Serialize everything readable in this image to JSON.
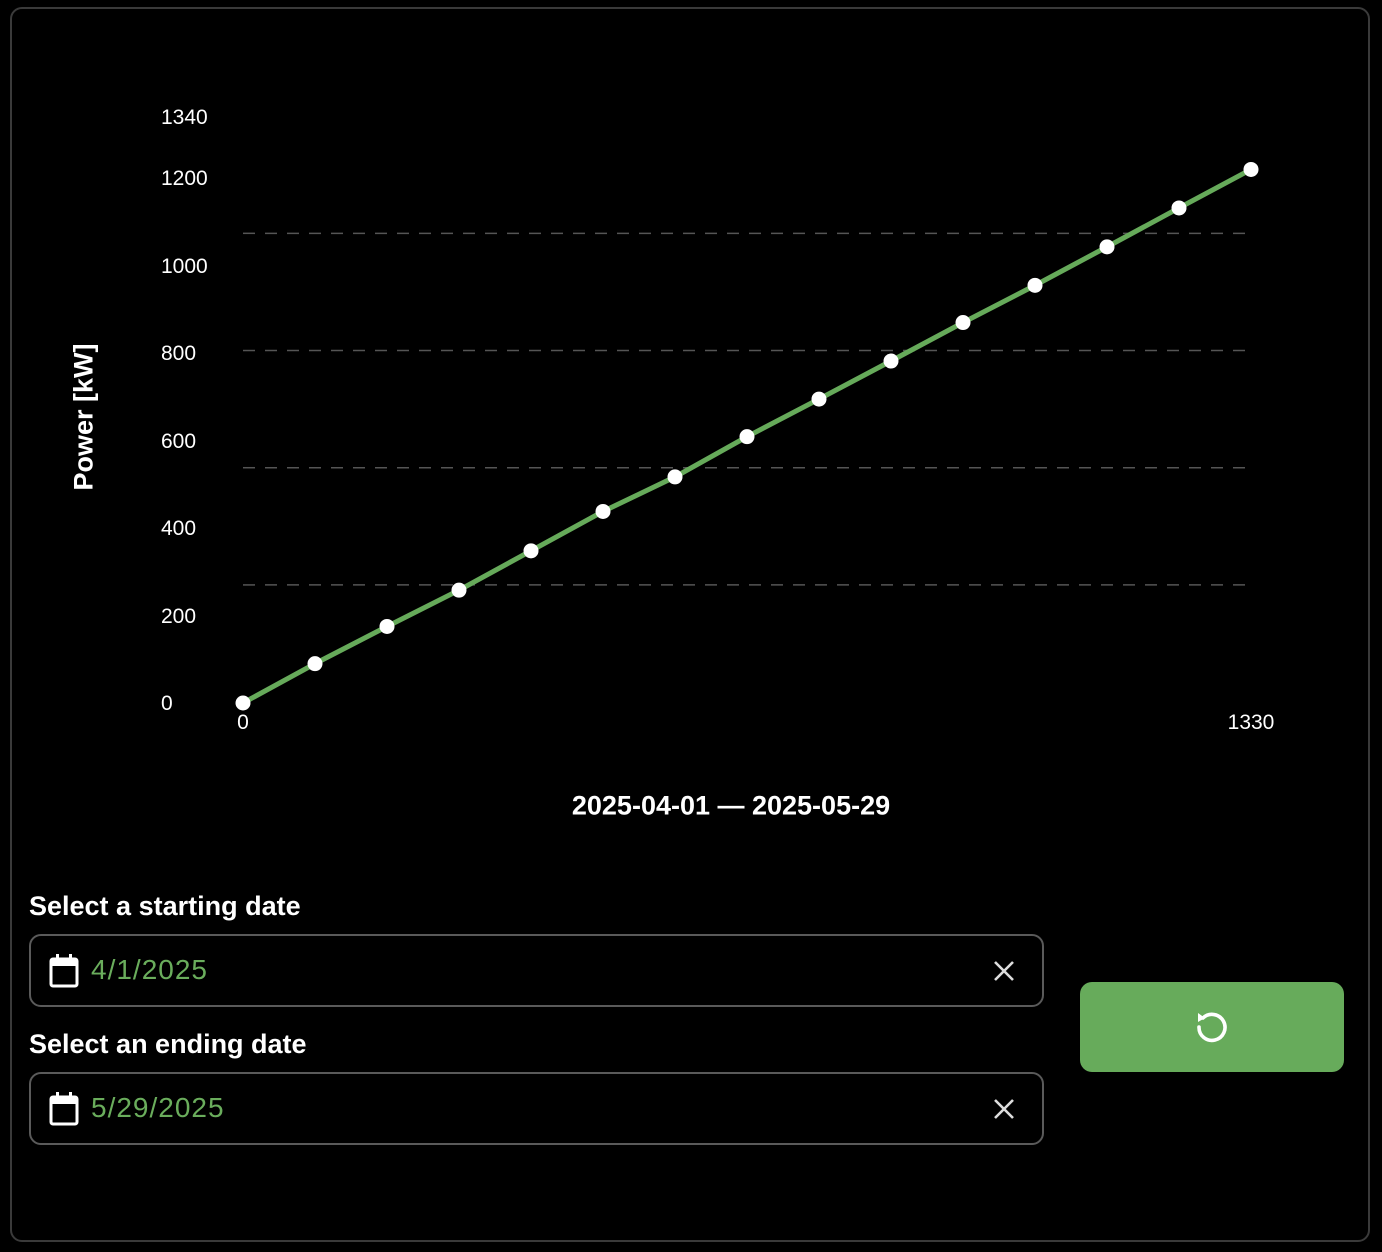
{
  "chart_data": {
    "type": "line",
    "xlabel": "2025-04-01 — 2025-05-29",
    "ylabel": "Power [kW]",
    "x_ticks": [
      "0",
      "1330"
    ],
    "y_ticks": [
      "0",
      "200",
      "400",
      "600",
      "800",
      "1000",
      "1200",
      "1340"
    ],
    "xlim": [
      0,
      1330
    ],
    "ylim": [
      0,
      1340
    ],
    "grid": "horizontal dashed",
    "series": [
      {
        "color": "#66aa5a",
        "marker_color": "#ffffff",
        "x": [
          0,
          95,
          190,
          285,
          380,
          475,
          570,
          665,
          760,
          855,
          950,
          1045,
          1140,
          1235,
          1330
        ],
        "y": [
          0,
          90,
          175,
          258,
          348,
          438,
          517,
          609,
          695,
          782,
          870,
          955,
          1043,
          1132,
          1220
        ]
      }
    ]
  },
  "form": {
    "start_label": "Select a starting date",
    "start_value": "4/1/2025",
    "end_label": "Select an ending date",
    "end_value": "5/29/2025"
  },
  "icons": {
    "calendar": "calendar-icon",
    "clear": "close-icon",
    "reset": "reset-icon"
  },
  "colors": {
    "accent": "#67ab5b",
    "date_text": "#6aad5c",
    "background": "#000000"
  }
}
